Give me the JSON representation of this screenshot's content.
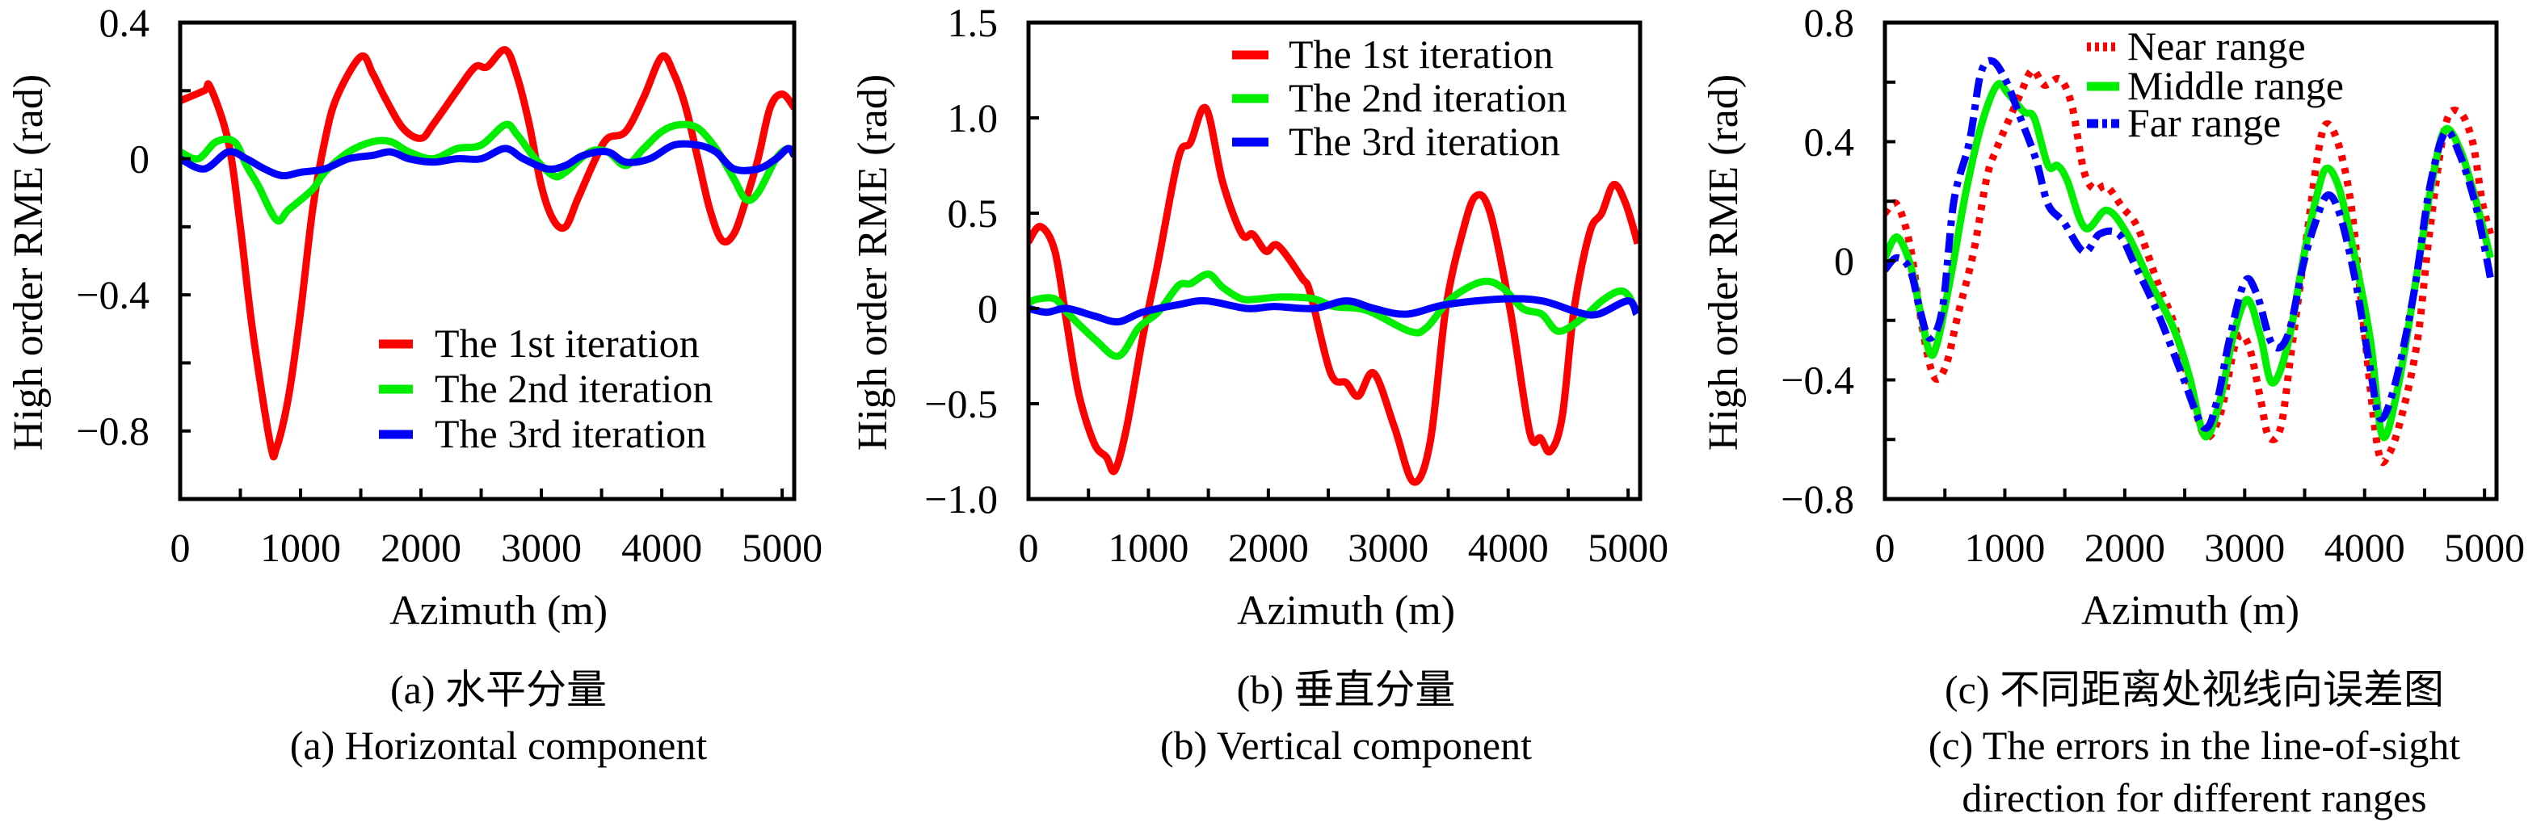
{
  "chart_data": [
    {
      "type": "line",
      "panel": "a",
      "xlabel": "Azimuth (m)",
      "ylabel": "High order RME (rad)",
      "xlim": [
        0,
        5100
      ],
      "ylim": [
        -1.0,
        0.4
      ],
      "x_ticks": [
        0,
        1000,
        2000,
        3000,
        4000,
        5000
      ],
      "x_tick_labels": [
        "0",
        "1000",
        "2000",
        "3000",
        "4000",
        "5000"
      ],
      "x_minor_step": 500,
      "y_ticks": [
        0.4,
        0,
        -0.4,
        -0.8
      ],
      "y_tick_labels": [
        "0.4",
        "0",
        "−0.4",
        "−0.8"
      ],
      "y_minor_step": 0.2,
      "legend_position": "bottom-right",
      "caption_cn": "(a) 水平分量",
      "caption_en": [
        "(a) Horizontal component"
      ],
      "series": [
        {
          "name": "The 1st iteration",
          "color": "#ff0000",
          "style": "solid",
          "x": [
            0,
            200,
            250,
            400,
            500,
            600,
            750,
            800,
            900,
            1000,
            1100,
            1200,
            1300,
            1500,
            1600,
            1700,
            1850,
            2000,
            2100,
            2300,
            2450,
            2550,
            2700,
            2800,
            2900,
            3000,
            3100,
            3200,
            3300,
            3450,
            3550,
            3700,
            3850,
            4000,
            4100,
            4200,
            4300,
            4400,
            4500,
            4600,
            4700,
            4800,
            4900,
            5000,
            5100
          ],
          "y": [
            0.17,
            0.2,
            0.21,
            0.05,
            -0.2,
            -0.5,
            -0.84,
            -0.85,
            -0.7,
            -0.45,
            -0.15,
            0.05,
            0.18,
            0.3,
            0.25,
            0.18,
            0.09,
            0.06,
            0.1,
            0.2,
            0.27,
            0.27,
            0.32,
            0.24,
            0.1,
            -0.08,
            -0.18,
            -0.2,
            -0.12,
            0.0,
            0.06,
            0.08,
            0.18,
            0.3,
            0.25,
            0.15,
            0.0,
            -0.15,
            -0.24,
            -0.22,
            -0.12,
            0.0,
            0.15,
            0.19,
            0.15
          ]
        },
        {
          "name": "The 2nd iteration",
          "color": "#00ee00",
          "style": "solid",
          "x": [
            0,
            150,
            300,
            450,
            550,
            650,
            800,
            900,
            1100,
            1200,
            1400,
            1600,
            1750,
            1900,
            2100,
            2300,
            2500,
            2700,
            2800,
            2950,
            3100,
            3200,
            3400,
            3550,
            3700,
            3850,
            4000,
            4150,
            4300,
            4450,
            4600,
            4700,
            4800,
            4950,
            5050,
            5100
          ],
          "y": [
            0.02,
            0.0,
            0.05,
            0.05,
            -0.02,
            -0.08,
            -0.18,
            -0.15,
            -0.09,
            -0.04,
            0.02,
            0.05,
            0.05,
            0.02,
            0.0,
            0.03,
            0.04,
            0.1,
            0.07,
            0.0,
            -0.05,
            -0.04,
            0.02,
            0.02,
            -0.02,
            0.03,
            0.08,
            0.1,
            0.09,
            0.03,
            -0.06,
            -0.12,
            -0.1,
            0.0,
            0.03,
            0.01
          ]
        },
        {
          "name": "The 3rd iteration",
          "color": "#0000ff",
          "style": "solid",
          "x": [
            0,
            200,
            400,
            550,
            700,
            850,
            1000,
            1200,
            1400,
            1600,
            1750,
            1900,
            2100,
            2300,
            2500,
            2700,
            2850,
            3050,
            3200,
            3350,
            3550,
            3700,
            3900,
            4100,
            4300,
            4450,
            4600,
            4800,
            4950,
            5050,
            5100
          ],
          "y": [
            0.0,
            -0.03,
            0.02,
            0.0,
            -0.03,
            -0.05,
            -0.04,
            -0.03,
            0.0,
            0.01,
            0.02,
            0.0,
            -0.01,
            0.0,
            0.0,
            0.03,
            0.0,
            -0.03,
            -0.02,
            0.01,
            0.02,
            -0.01,
            0.0,
            0.04,
            0.04,
            0.02,
            -0.03,
            -0.03,
            0.0,
            0.03,
            0.01
          ]
        }
      ]
    },
    {
      "type": "line",
      "panel": "b",
      "xlabel": "Azimuth (m)",
      "ylabel": "High order RME (rad)",
      "xlim": [
        0,
        5100
      ],
      "ylim": [
        -1.0,
        1.5
      ],
      "x_ticks": [
        0,
        1000,
        2000,
        3000,
        4000,
        5000
      ],
      "x_tick_labels": [
        "0",
        "1000",
        "2000",
        "3000",
        "4000",
        "5000"
      ],
      "x_minor_step": 500,
      "y_ticks": [
        1.5,
        1.0,
        0.5,
        0,
        -0.5,
        -1.0
      ],
      "y_tick_labels": [
        "1.5",
        "1.0",
        "0.5",
        "0",
        "−0.5",
        "−1.0"
      ],
      "y_minor_step": 0.5,
      "legend_position": "top-right",
      "caption_cn": "(b) 垂直分量",
      "caption_en": [
        "(b) Vertical component"
      ],
      "series": [
        {
          "name": "The 1st iteration",
          "color": "#ff0000",
          "style": "solid",
          "x": [
            0,
            100,
            220,
            320,
            420,
            550,
            650,
            720,
            820,
            950,
            1080,
            1250,
            1350,
            1480,
            1620,
            1780,
            1870,
            1980,
            2080,
            2280,
            2350,
            2520,
            2650,
            2750,
            2880,
            3050,
            3210,
            3350,
            3480,
            3620,
            3730,
            3850,
            4020,
            4180,
            4270,
            4350,
            4450,
            4550,
            4680,
            4780,
            4880,
            4980,
            5080
          ],
          "y": [
            0.35,
            0.43,
            0.3,
            -0.08,
            -0.45,
            -0.71,
            -0.78,
            -0.85,
            -0.62,
            -0.16,
            0.24,
            0.79,
            0.87,
            1.05,
            0.66,
            0.39,
            0.39,
            0.3,
            0.33,
            0.16,
            0.08,
            -0.34,
            -0.39,
            -0.46,
            -0.34,
            -0.62,
            -0.91,
            -0.7,
            0.0,
            0.4,
            0.59,
            0.5,
            -0.02,
            -0.65,
            -0.68,
            -0.75,
            -0.57,
            0.0,
            0.4,
            0.5,
            0.65,
            0.55,
            0.34
          ]
        },
        {
          "name": "The 2nd iteration",
          "color": "#00ee00",
          "style": "solid",
          "x": [
            0,
            80,
            220,
            320,
            550,
            750,
            920,
            1080,
            1250,
            1350,
            1500,
            1620,
            1780,
            1920,
            2120,
            2380,
            2550,
            2820,
            3180,
            3320,
            3520,
            3780,
            3950,
            4120,
            4280,
            4420,
            4620,
            4780,
            4920,
            5000,
            5070
          ],
          "y": [
            0.03,
            0.05,
            0.05,
            -0.02,
            -0.16,
            -0.25,
            -0.1,
            -0.02,
            0.12,
            0.13,
            0.18,
            0.11,
            0.05,
            0.05,
            0.06,
            0.05,
            0.01,
            -0.01,
            -0.12,
            -0.1,
            0.05,
            0.14,
            0.11,
            0.0,
            -0.03,
            -0.12,
            -0.05,
            0.04,
            0.09,
            0.07,
            -0.02
          ]
        },
        {
          "name": "The 3rd iteration",
          "color": "#0000ff",
          "style": "solid",
          "x": [
            0,
            150,
            320,
            550,
            750,
            950,
            1250,
            1480,
            1820,
            2050,
            2380,
            2650,
            2880,
            3150,
            3480,
            3950,
            4280,
            4580,
            4750,
            5000,
            5070
          ],
          "y": [
            0.0,
            -0.02,
            0.0,
            -0.04,
            -0.07,
            -0.02,
            0.02,
            0.04,
            0.0,
            0.01,
            0.0,
            0.04,
            0.0,
            -0.03,
            0.02,
            0.05,
            0.04,
            -0.02,
            -0.03,
            0.04,
            -0.03
          ]
        }
      ]
    },
    {
      "type": "line",
      "panel": "c",
      "xlabel": "Azimuth (m)",
      "ylabel": "High order RME (rad)",
      "xlim": [
        0,
        5100
      ],
      "ylim": [
        -0.8,
        0.8
      ],
      "x_ticks": [
        0,
        1000,
        2000,
        3000,
        4000,
        5000
      ],
      "x_tick_labels": [
        "0",
        "1000",
        "2000",
        "3000",
        "4000",
        "5000"
      ],
      "x_minor_step": 500,
      "y_ticks": [
        0.8,
        0.4,
        0,
        -0.4,
        -0.8
      ],
      "y_tick_labels": [
        "0.8",
        "0.4",
        "0",
        "−0.4",
        "−0.8"
      ],
      "y_minor_step": 0.2,
      "legend_position": "top-center",
      "caption_cn": "(c) 不同距离处视线向误差图",
      "caption_en": [
        "(c) The errors in the line-of-sight",
        "direction for different ranges"
      ],
      "series": [
        {
          "name": "Near range",
          "color": "#ff0000",
          "style": "dotted",
          "x": [
            0,
            100,
            210,
            310,
            410,
            510,
            610,
            740,
            850,
            935,
            1030,
            1130,
            1230,
            1330,
            1460,
            1560,
            1660,
            1750,
            1850,
            1980,
            2110,
            2280,
            2410,
            2540,
            2670,
            2800,
            2930,
            3030,
            3130,
            3200,
            3300,
            3390,
            3520,
            3620,
            3690,
            3790,
            3890,
            3980,
            4110,
            4200,
            4310,
            4440,
            4540,
            4670,
            4790,
            4900,
            4980,
            5050
          ],
          "y": [
            0.16,
            0.19,
            0.05,
            -0.22,
            -0.39,
            -0.35,
            -0.18,
            0.03,
            0.28,
            0.38,
            0.47,
            0.56,
            0.64,
            0.59,
            0.61,
            0.52,
            0.3,
            0.24,
            0.25,
            0.18,
            0.11,
            -0.08,
            -0.21,
            -0.42,
            -0.59,
            -0.51,
            -0.27,
            -0.28,
            -0.46,
            -0.59,
            -0.56,
            -0.3,
            0.09,
            0.38,
            0.46,
            0.38,
            0.18,
            -0.17,
            -0.63,
            -0.65,
            -0.52,
            -0.27,
            0.09,
            0.45,
            0.5,
            0.4,
            0.2,
            0.09
          ]
        },
        {
          "name": "Middle range",
          "color": "#00ee00",
          "style": "solid",
          "x": [
            0,
            100,
            210,
            295,
            375,
            440,
            560,
            670,
            800,
            935,
            1030,
            1160,
            1245,
            1360,
            1440,
            1520,
            1670,
            1850,
            2020,
            2210,
            2410,
            2540,
            2670,
            2800,
            2900,
            3020,
            3130,
            3230,
            3360,
            3490,
            3590,
            3680,
            3790,
            3920,
            4050,
            4150,
            4280,
            4410,
            4560,
            4670,
            4800,
            4930,
            5050
          ],
          "y": [
            0.01,
            0.08,
            -0.01,
            -0.17,
            -0.31,
            -0.27,
            -0.03,
            0.22,
            0.45,
            0.59,
            0.56,
            0.5,
            0.48,
            0.32,
            0.32,
            0.27,
            0.11,
            0.17,
            0.09,
            -0.07,
            -0.23,
            -0.39,
            -0.59,
            -0.46,
            -0.26,
            -0.13,
            -0.25,
            -0.41,
            -0.28,
            0.01,
            0.2,
            0.31,
            0.24,
            0.01,
            -0.27,
            -0.59,
            -0.42,
            -0.11,
            0.26,
            0.44,
            0.37,
            0.2,
            0.01
          ]
        },
        {
          "name": "Far range",
          "color": "#0000ff",
          "style": "dashdot",
          "x": [
            0,
            100,
            210,
            295,
            375,
            480,
            575,
            705,
            800,
            900,
            1015,
            1130,
            1260,
            1360,
            1490,
            1660,
            1790,
            1950,
            2080,
            2280,
            2475,
            2660,
            2770,
            2870,
            3000,
            3100,
            3230,
            3360,
            3490,
            3590,
            3690,
            3790,
            3920,
            4050,
            4130,
            4250,
            4410,
            4540,
            4670,
            4790,
            4930,
            5050
          ],
          "y": [
            -0.03,
            0.01,
            -0.03,
            -0.17,
            -0.26,
            -0.16,
            0.2,
            0.4,
            0.63,
            0.67,
            0.6,
            0.48,
            0.34,
            0.19,
            0.13,
            0.03,
            0.09,
            0.09,
            -0.01,
            -0.18,
            -0.38,
            -0.56,
            -0.47,
            -0.27,
            -0.07,
            -0.11,
            -0.28,
            -0.25,
            -0.01,
            0.13,
            0.22,
            0.16,
            -0.06,
            -0.37,
            -0.53,
            -0.42,
            -0.11,
            0.24,
            0.43,
            0.36,
            0.18,
            -0.06
          ]
        }
      ]
    }
  ]
}
